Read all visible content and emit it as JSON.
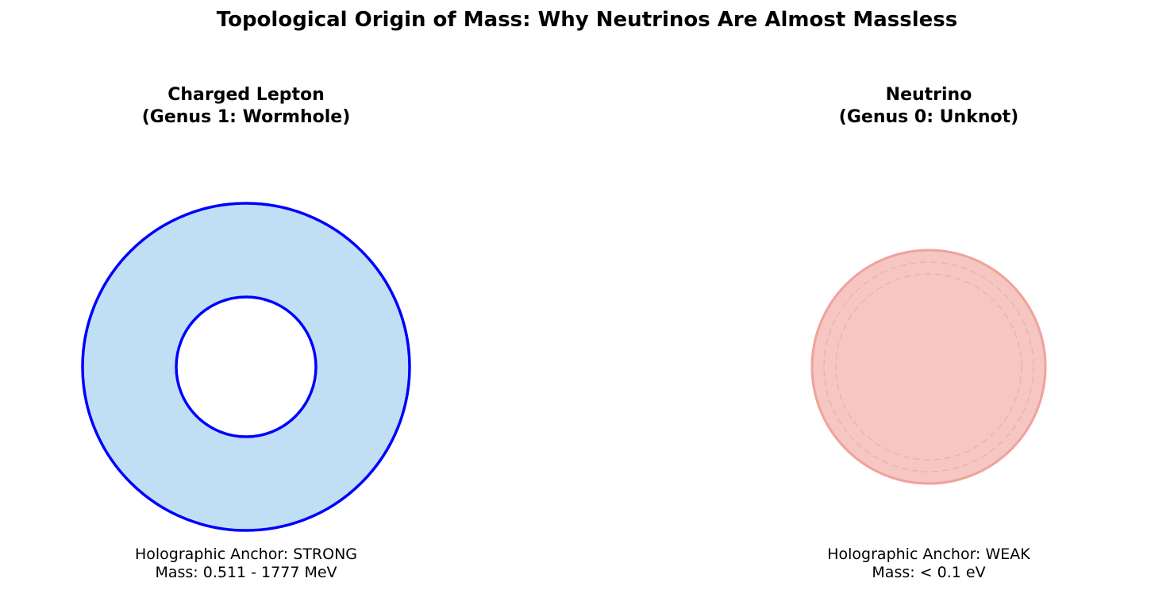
{
  "title": "Topological Origin of Mass: Why Neutrinos Are Almost Massless",
  "panels": {
    "left": {
      "title_line1": "Charged Lepton",
      "title_line2": "(Genus 1: Wormhole)",
      "anchor": "Holographic Anchor: STRONG",
      "mass": "Mass: 0.511 - 1777 MeV"
    },
    "right": {
      "title_line1": "Neutrino",
      "title_line2": "(Genus 0: Unknot)",
      "anchor": "Holographic Anchor: WEAK",
      "mass": "Mass: < 0.1 eV"
    }
  },
  "colors": {
    "torus_fill": "#c0dff5",
    "torus_stroke": "#0000ff",
    "sphere_fill": "#f5c6c2",
    "sphere_stroke": "#f0a29b",
    "sphere_dashed": "#e8aaa5"
  }
}
